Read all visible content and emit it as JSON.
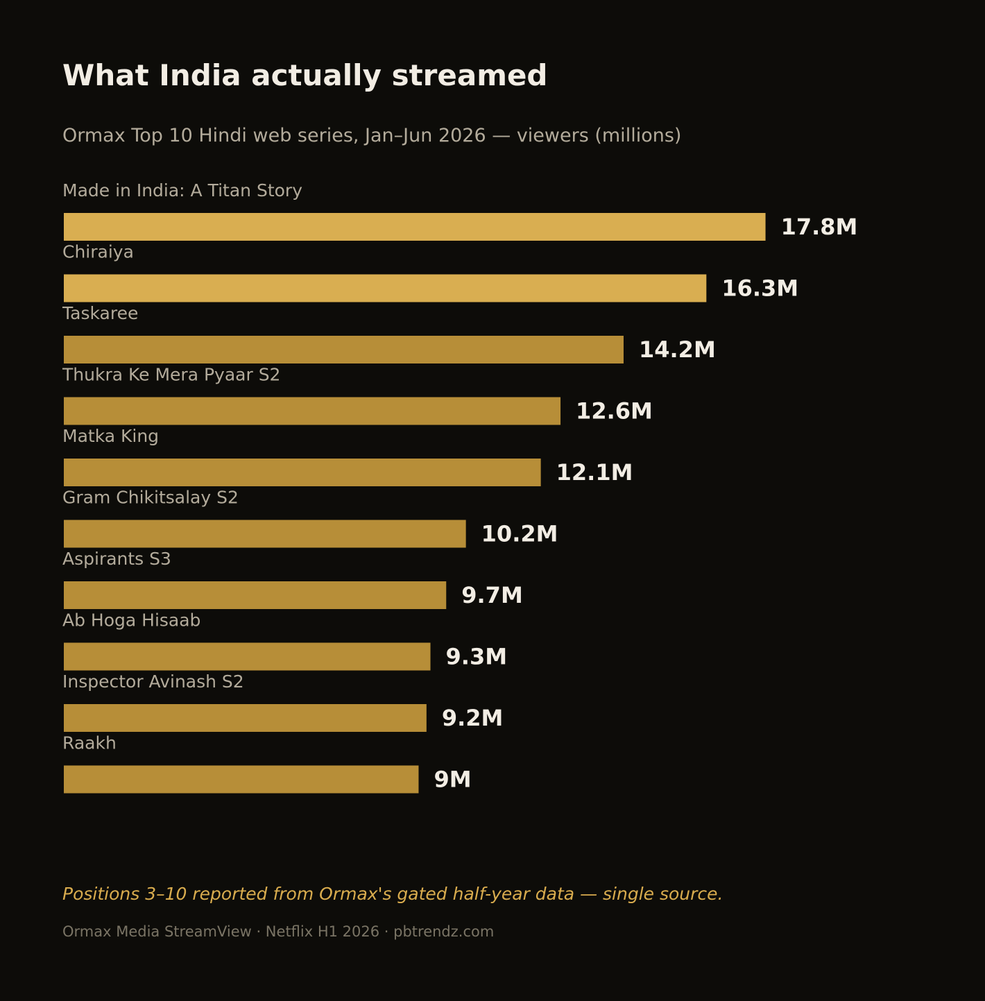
{
  "header": {
    "title": "What India actually streamed",
    "subtitle": "Ormax Top 10 Hindi web series, Jan–Jun 2026 — viewers (millions)"
  },
  "chart_data": {
    "type": "bar",
    "orientation": "horizontal",
    "categories": [
      "Made in India: A Titan Story",
      "Chiraiya",
      "Taskaree",
      "Thukra Ke Mera Pyaar S2",
      "Matka King",
      "Gram Chikitsalay S2",
      "Aspirants S3",
      "Ab Hoga Hisaab",
      "Inspector Avinash S2",
      "Raakh"
    ],
    "values": [
      17.8,
      16.3,
      14.2,
      12.6,
      12.1,
      10.2,
      9.7,
      9.3,
      9.2,
      9
    ],
    "data_labels": [
      "17.8M",
      "16.3M",
      "14.2M",
      "12.6M",
      "12.1M",
      "10.2M",
      "9.7M",
      "9.3M",
      "9.2M",
      "9M"
    ],
    "unit": "millions",
    "xlim": [
      0,
      20
    ],
    "grid": false,
    "legend": "none",
    "colors": {
      "highlight": "#d9ae51",
      "default": "#b78e38",
      "label": "#b3ab9b",
      "value": "#f2ede4"
    },
    "highlight_top_n": 2
  },
  "footer": {
    "note": "Positions 3–10 reported from Ormax's gated half-year data — single source.",
    "source": "Ormax Media StreamView · Netflix H1 2026 · pbtrendz.com"
  }
}
